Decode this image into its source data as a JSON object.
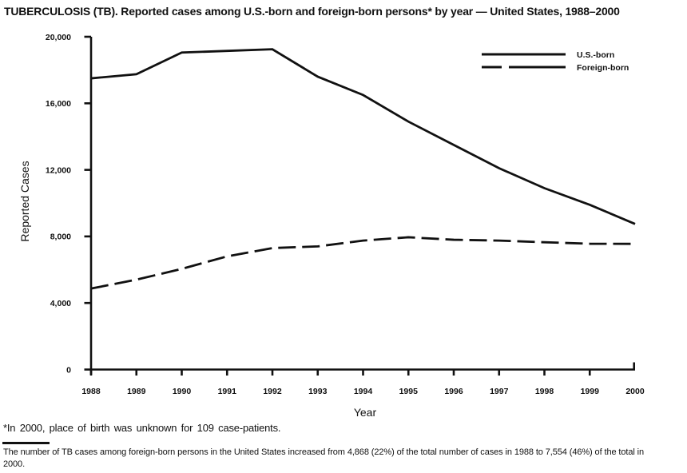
{
  "title": "TUBERCULOSIS (TB). Reported cases among U.S.-born and foreign-born persons* by year — United States, 1988–2000",
  "footnotes": {
    "asterisk": "*In 2000, place of birth was unknown for 109 case-patients.",
    "summary": "The number of TB cases among foreign-born persons in the United States increased from 4,868 (22%) of the total number of cases in 1988 to 7,554 (46%) of the total in 2000."
  },
  "chart_data": {
    "type": "line",
    "x": [
      "1988",
      "1989",
      "1990",
      "1991",
      "1992",
      "1993",
      "1994",
      "1995",
      "1996",
      "1997",
      "1998",
      "1999",
      "2000"
    ],
    "series": [
      {
        "name": "U.S.-born",
        "line_style": "solid",
        "values": [
          17500,
          17750,
          19050,
          19150,
          19250,
          17600,
          16500,
          14900,
          13500,
          12100,
          10900,
          9900,
          8750
        ]
      },
      {
        "name": "Foreign-born",
        "line_style": "dashed",
        "values": [
          4868,
          5400,
          6050,
          6800,
          7300,
          7400,
          7750,
          7950,
          7800,
          7750,
          7650,
          7560,
          7554
        ]
      }
    ],
    "xlabel": "Year",
    "ylabel": "Reported Cases",
    "ylim": [
      0,
      20000
    ],
    "yticks": [
      {
        "value": 0,
        "label": "0"
      },
      {
        "value": 4000,
        "label": "4,000"
      },
      {
        "value": 8000,
        "label": "8,000"
      },
      {
        "value": 12000,
        "label": "12,000"
      },
      {
        "value": 16000,
        "label": "16,000"
      },
      {
        "value": 20000,
        "label": "20,000"
      }
    ],
    "legend_position": "top-right",
    "grid": false,
    "line_color": "#111111"
  }
}
